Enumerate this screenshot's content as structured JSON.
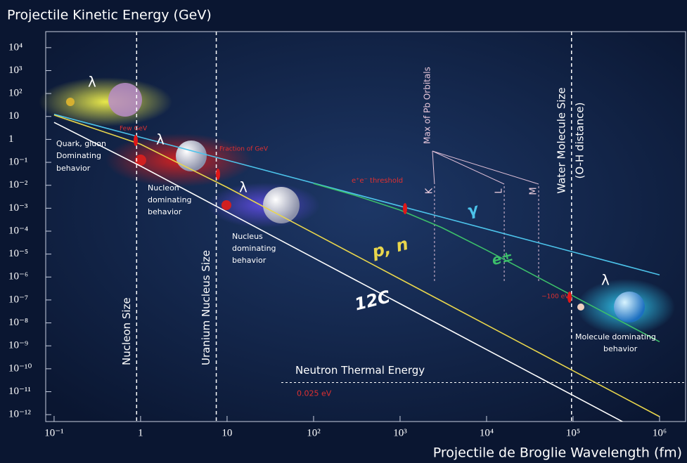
{
  "chart_data": {
    "type": "line",
    "title": "Projectile Kinetic Energy (GeV)",
    "x_label": "Projectile de Broglie Wavelength (fm)",
    "xscale": "log",
    "yscale": "log",
    "xlim": [
      0.08,
      2000000
    ],
    "ylim": [
      5e-13,
      50000
    ],
    "xticks": [
      {
        "value": 0.1,
        "label": "10⁻¹"
      },
      1,
      10,
      {
        "value": 100,
        "label": "10²"
      },
      {
        "value": 1000,
        "label": "10³"
      },
      {
        "value": 10000,
        "label": "10⁴"
      },
      {
        "value": 100000,
        "label": "10⁵"
      },
      {
        "value": 1000000,
        "label": "10⁶"
      }
    ],
    "yticks": [
      {
        "value": 10000,
        "label": "10⁴"
      },
      {
        "value": 1000,
        "label": "10³"
      },
      {
        "value": 100,
        "label": "10²"
      },
      10,
      1,
      {
        "value": 0.1,
        "label": "10⁻¹"
      },
      {
        "value": 0.01,
        "label": "10⁻²"
      },
      {
        "value": 0.001,
        "label": "10⁻³"
      },
      {
        "value": 0.0001,
        "label": "10⁻⁴"
      },
      {
        "value": 1e-05,
        "label": "10⁻⁵"
      },
      {
        "value": 1e-06,
        "label": "10⁻⁶"
      },
      {
        "value": 1e-07,
        "label": "10⁻⁷"
      },
      {
        "value": 1e-08,
        "label": "10⁻⁸"
      },
      {
        "value": 1e-09,
        "label": "10⁻⁹"
      },
      {
        "value": 1e-10,
        "label": "10⁻¹⁰"
      },
      {
        "value": 1e-11,
        "label": "10⁻¹¹"
      },
      {
        "value": 1e-12,
        "label": "10⁻¹²"
      }
    ],
    "series": [
      {
        "name": "γ",
        "color": "#4cc3ea",
        "x": [
          0.1,
          1,
          10,
          100,
          1000,
          10000,
          100000,
          1000000
        ],
        "values": [
          12.4,
          1.24,
          0.124,
          0.0124,
          0.00124,
          0.000124,
          1.24e-05,
          1.24e-06
        ]
      },
      {
        "name": "e±",
        "color": "#3cbf6a",
        "x": [
          100,
          300,
          1000,
          3000,
          10000,
          100000,
          1000000
        ],
        "values": [
          0.0119,
          0.003654,
          0.00083,
          0.0001462,
          1.484e-05,
          1.504e-07,
          1.504e-09
        ]
      },
      {
        "name": "p, n",
        "color": "#e9d64c",
        "x": [
          0.1,
          1,
          10,
          100,
          1000,
          10000,
          100000,
          1000000
        ],
        "values": [
          11.5,
          0.617,
          0.00814,
          8.196e-05,
          8.196e-07,
          8.2e-09,
          8.2e-11,
          8.2e-13
        ]
      },
      {
        "name": "12C",
        "color": "#ffffff",
        "x": [
          0.1,
          1,
          10,
          100,
          1000,
          10000,
          100000,
          1000000
        ],
        "values": [
          5.52,
          0.0686,
          0.000688,
          6.88e-06,
          6.88e-08,
          6.88e-10,
          6.88e-12,
          6.88e-14
        ]
      }
    ],
    "vertical_lines": [
      {
        "label": "Nucleon Size",
        "x": 0.9
      },
      {
        "label": "Uranium Nucleus Size",
        "x": 7.5
      },
      {
        "label": "Water Molecule Size",
        "sublabel": "(O-H distance)",
        "x": 96000
      }
    ],
    "pb_orbitals": {
      "title": "Max of Pb Orbitals",
      "lines": [
        {
          "label": "K",
          "x": 2500
        },
        {
          "label": "L",
          "x": 16000
        },
        {
          "label": "M",
          "x": 40000
        }
      ]
    },
    "neutron_thermal": {
      "label": "Neutron Thermal Energy",
      "y_label": "0.025 eV",
      "y": 2.5e-11
    },
    "annotations": [
      "Few GeV",
      "Fraction of GeV",
      "e⁺e⁻ threshold",
      "~100 eV",
      "Quark, gluon",
      "Dominating",
      "behavior",
      "Nucleon",
      "dominating",
      "behavior",
      "Nucleus",
      "dominating",
      "behavior",
      "Molecule dominating",
      "behavior",
      "λ",
      "λ",
      "λ",
      "λ"
    ]
  }
}
